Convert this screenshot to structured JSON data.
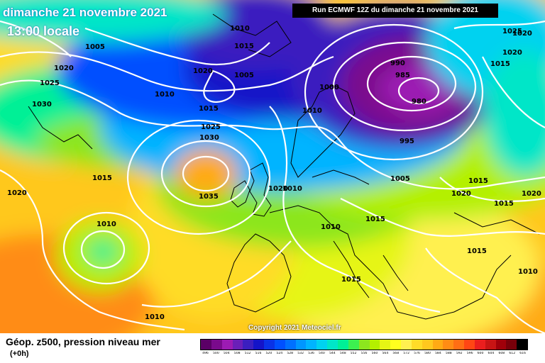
{
  "header": {
    "date": "dimanche 21 novembre 2021",
    "time": "13:00 locale",
    "run": "Run ECMWF 12Z du dimanche 21 novembre 2021"
  },
  "copyright": "Copyright 2021 Meteociel.fr",
  "footer": {
    "title": "Géop. z500, pression niveau mer",
    "subtitle": "(+0h)"
  },
  "legend": {
    "ticks": [
      "496",
      "500",
      "504",
      "508",
      "512",
      "516",
      "520",
      "524",
      "528",
      "532",
      "536",
      "540",
      "544",
      "548",
      "552",
      "556",
      "560",
      "564",
      "568",
      "572",
      "576",
      "580",
      "584",
      "588",
      "592",
      "596",
      "600",
      "604",
      "608",
      "612",
      "616"
    ],
    "colors": [
      "#5b0066",
      "#7a0a8c",
      "#9c1bb3",
      "#6a1fb8",
      "#3b1fbf",
      "#1414c8",
      "#0a32e6",
      "#0050ff",
      "#0070ff",
      "#0096ff",
      "#00b4ff",
      "#00d2f0",
      "#00e6c8",
      "#00f096",
      "#3cf050",
      "#8ce61e",
      "#b4f000",
      "#e6f514",
      "#ffff1e",
      "#fff050",
      "#ffdc28",
      "#ffc81e",
      "#ffaa14",
      "#ff8c14",
      "#ff6e14",
      "#ff4614",
      "#eb1e1e",
      "#c81414",
      "#a0000a",
      "#78000a",
      "#000000"
    ]
  },
  "isobar_labels": [
    {
      "text": "1010",
      "id": "l01"
    },
    {
      "text": "1015",
      "id": "l02"
    },
    {
      "text": "1005",
      "id": "l03"
    },
    {
      "text": "1020",
      "id": "l04"
    },
    {
      "text": "1025",
      "id": "l05"
    },
    {
      "text": "1030",
      "id": "l06"
    },
    {
      "text": "1020",
      "id": "l07"
    },
    {
      "text": "1005",
      "id": "l08"
    },
    {
      "text": "1010",
      "id": "l09"
    },
    {
      "text": "1015",
      "id": "l10"
    },
    {
      "text": "1025",
      "id": "l11"
    },
    {
      "text": "1030",
      "id": "l12"
    },
    {
      "text": "1035",
      "id": "l13"
    },
    {
      "text": "1015",
      "id": "l14"
    },
    {
      "text": "1020",
      "id": "l15"
    },
    {
      "text": "1010",
      "id": "l16"
    },
    {
      "text": "1010",
      "id": "l17"
    },
    {
      "text": "1000",
      "id": "l18"
    },
    {
      "text": "990",
      "id": "l19"
    },
    {
      "text": "985",
      "id": "l20"
    },
    {
      "text": "980",
      "id": "l21"
    },
    {
      "text": "995",
      "id": "l22"
    },
    {
      "text": "1010",
      "id": "l23"
    },
    {
      "text": "1005",
      "id": "l24"
    },
    {
      "text": "1015",
      "id": "l25"
    },
    {
      "text": "1010",
      "id": "l26"
    },
    {
      "text": "1015",
      "id": "l27"
    },
    {
      "text": "1020",
      "id": "l28"
    },
    {
      "text": "1015",
      "id": "l29"
    },
    {
      "text": "1020",
      "id": "l30"
    },
    {
      "text": "1015",
      "id": "l31"
    },
    {
      "text": "1010",
      "id": "l32"
    },
    {
      "text": "1015",
      "id": "l33"
    },
    {
      "text": "1025",
      "id": "l34"
    },
    {
      "text": "1020",
      "id": "l35"
    },
    {
      "text": "1020",
      "id": "l36"
    },
    {
      "text": "1015",
      "id": "l37"
    },
    {
      "text": "1010",
      "id": "l38"
    },
    {
      "text": "1010",
      "id": "l39"
    },
    {
      "text": "1020",
      "id": "l40"
    }
  ]
}
